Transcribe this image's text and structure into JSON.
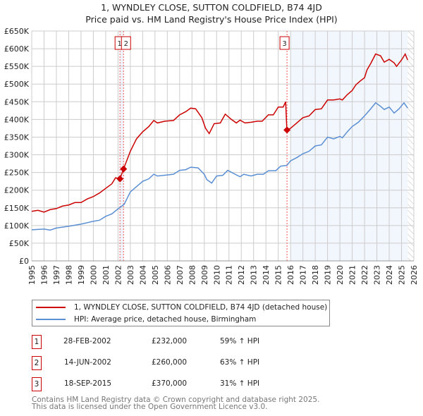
{
  "chart_data": {
    "type": "line",
    "title": "1, WYNDLEY CLOSE, SUTTON COLDFIELD, B74 4JD",
    "subtitle": "Price paid vs. HM Land Registry's House Price Index (HPI)",
    "xlim": [
      1995,
      2026
    ],
    "ylim": [
      0,
      650000
    ],
    "x_ticks": [
      "1995",
      "1996",
      "1997",
      "1998",
      "1999",
      "2000",
      "2001",
      "2002",
      "2003",
      "2004",
      "2005",
      "2006",
      "2007",
      "2008",
      "2009",
      "2010",
      "2011",
      "2012",
      "2013",
      "2014",
      "2015",
      "2016",
      "2017",
      "2018",
      "2019",
      "2020",
      "2021",
      "2022",
      "2023",
      "2024",
      "2025",
      "2026"
    ],
    "y_ticks": [
      "£0",
      "£50K",
      "£100K",
      "£150K",
      "£200K",
      "£250K",
      "£300K",
      "£350K",
      "£400K",
      "£450K",
      "£500K",
      "£550K",
      "£600K",
      "£650K"
    ],
    "grid": true,
    "series": [
      {
        "name": "1, WYNDLEY CLOSE, SUTTON COLDFIELD, B74 4JD (detached house)",
        "color": "#cc0000",
        "x": [
          1995,
          1995.5,
          1996,
          1996.5,
          1997,
          1997.5,
          1998,
          1998.5,
          1999,
          1999.5,
          2000,
          2000.5,
          2001,
          2001.5,
          2001.8,
          2002.16,
          2002.45,
          2003,
          2003.5,
          2004,
          2004.5,
          2004.9,
          2005.2,
          2005.8,
          2006.5,
          2007,
          2007.5,
          2007.9,
          2008.3,
          2008.8,
          2009.1,
          2009.4,
          2009.8,
          2010.3,
          2010.7,
          2011.2,
          2011.6,
          2011.9,
          2012.3,
          2012.8,
          2013.3,
          2013.7,
          2014.2,
          2014.6,
          2015,
          2015.4,
          2015.6,
          2015.7,
          2016,
          2016.5,
          2017,
          2017.5,
          2018,
          2018.5,
          2019,
          2019.5,
          2020,
          2020.2,
          2020.6,
          2021,
          2021.3,
          2021.7,
          2022,
          2022.2,
          2022.5,
          2022.9,
          2023.3,
          2023.6,
          2024,
          2024.4,
          2024.6,
          2025,
          2025.3,
          2025.5
        ],
        "y": [
          140,
          143,
          138,
          145,
          148,
          155,
          158,
          165,
          165,
          175,
          182,
          192,
          205,
          218,
          235,
          232,
          260,
          310,
          345,
          365,
          380,
          397,
          390,
          395,
          397,
          413,
          422,
          432,
          430,
          405,
          375,
          360,
          388,
          390,
          415,
          400,
          390,
          398,
          390,
          392,
          395,
          395,
          413,
          413,
          435,
          435,
          450,
          370,
          375,
          390,
          405,
          410,
          428,
          430,
          455,
          455,
          458,
          455,
          470,
          482,
          498,
          510,
          518,
          540,
          558,
          585,
          580,
          562,
          570,
          560,
          550,
          568,
          585,
          568
        ]
      },
      {
        "name": "HPI: Average price, detached house, Birmingham",
        "color": "#5b8fd4",
        "x": [
          1995,
          1996,
          1996.5,
          1997,
          1998,
          1999,
          2000,
          2000.5,
          2001,
          2001.5,
          2002,
          2002.5,
          2003,
          2003.5,
          2004,
          2004.5,
          2004.9,
          2005.2,
          2006,
          2006.5,
          2007,
          2007.5,
          2007.9,
          2008.5,
          2009,
          2009.2,
          2009.6,
          2010,
          2010.5,
          2010.9,
          2011.5,
          2011.9,
          2012.2,
          2012.8,
          2013.3,
          2013.8,
          2014.2,
          2014.8,
          2015.2,
          2015.7,
          2016,
          2016.5,
          2017,
          2017.5,
          2018,
          2018.5,
          2019,
          2019.5,
          2020,
          2020.2,
          2020.6,
          2021,
          2021.5,
          2022,
          2022.5,
          2022.9,
          2023.3,
          2023.6,
          2024,
          2024.4,
          2024.8,
          2025.2,
          2025.5
        ],
        "y": [
          88,
          90,
          87,
          93,
          98,
          104,
          112,
          115,
          126,
          133,
          147,
          160,
          195,
          210,
          225,
          232,
          245,
          240,
          243,
          245,
          256,
          258,
          265,
          263,
          245,
          230,
          220,
          240,
          242,
          256,
          245,
          238,
          245,
          240,
          245,
          245,
          255,
          255,
          268,
          270,
          283,
          292,
          303,
          310,
          325,
          328,
          350,
          345,
          352,
          348,
          365,
          380,
          392,
          410,
          430,
          447,
          437,
          428,
          435,
          418,
          430,
          447,
          432
        ]
      }
    ],
    "sales": [
      {
        "id": "1",
        "date": "28-FEB-2002",
        "price": "£232,000",
        "hpi": "59% ↑ HPI",
        "x": 2002.16,
        "y": 232
      },
      {
        "id": "2",
        "date": "14-JUN-2002",
        "price": "£260,000",
        "hpi": "63% ↑ HPI",
        "x": 2002.45,
        "y": 260
      },
      {
        "id": "3",
        "date": "18-SEP-2015",
        "price": "£370,000",
        "hpi": "31% ↑ HPI",
        "x": 2015.71,
        "y": 370
      }
    ]
  },
  "footer": [
    "Contains HM Land Registry data © Crown copyright and database right 2025.",
    "This data is licensed under the Open Government Licence v3.0."
  ]
}
